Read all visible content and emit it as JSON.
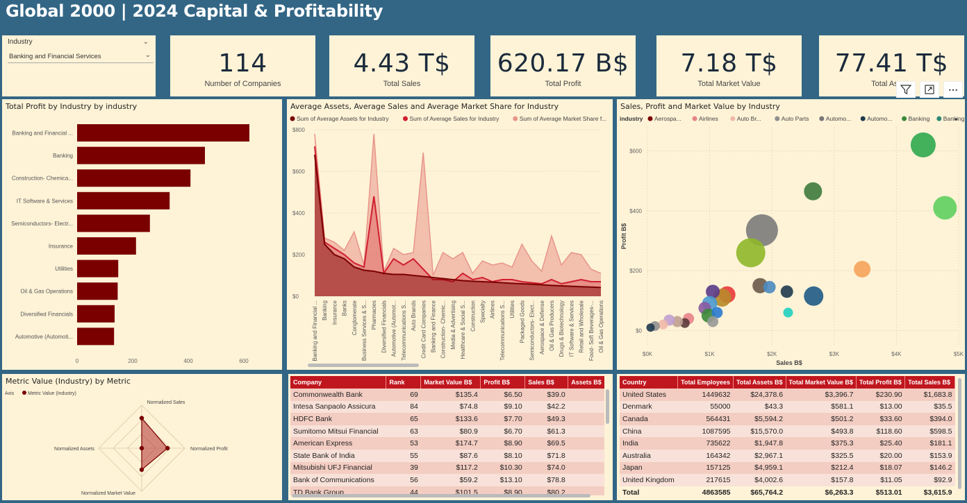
{
  "title": "Global 2000 | 2024 Capital & Profitability",
  "slicer": {
    "label": "Industry",
    "value": "Banking and Financial Services"
  },
  "cards": [
    {
      "value": "114",
      "label": "Number of Companies"
    },
    {
      "value": "4.43 T$",
      "label": "Total Sales"
    },
    {
      "value": "620.17 B$",
      "label": "Total Profit"
    },
    {
      "value": "7.18 T$",
      "label": "Total Market Value"
    },
    {
      "value": "77.41 T$",
      "label": "Total Assets"
    }
  ],
  "colors": {
    "header_bg": "#336685",
    "panel_bg": "#fef3d7",
    "accent_red": "#c0161e",
    "bar": "#7a0000"
  },
  "bar_chart": {
    "title": "Total Profit by Industry by industry",
    "chart_data": {
      "type": "bar",
      "orientation": "horizontal",
      "categories": [
        "Banking and Financial ...",
        "Banking",
        "Construction- Chemica...",
        "IT Software & Services",
        "Semiconductors- Electr...",
        "Insurance",
        "Utilities",
        "Oil & Gas Operations",
        "Diversified Financials",
        "Automotive (Automoti..."
      ],
      "values": [
        620,
        460,
        408,
        333,
        262,
        212,
        148,
        146,
        135,
        133
      ],
      "xticks": [
        "0",
        "200",
        "400",
        "600"
      ],
      "xlim": [
        0,
        680
      ]
    }
  },
  "area_chart": {
    "title": "Average Assets, Average Sales and Average Market Share for Industry",
    "chart_data": {
      "type": "area",
      "series": [
        {
          "name": "Sum of Average Assets for Industry",
          "color": "#7a0000",
          "values": [
            680,
            250,
            200,
            180,
            140,
            125,
            120,
            110,
            105,
            105,
            100,
            95,
            90,
            85,
            80,
            75,
            72,
            70,
            68,
            65,
            62,
            60,
            58,
            55,
            52,
            50,
            48,
            46,
            44,
            42
          ]
        },
        {
          "name": "Sum of Average Sales for Industry",
          "color": "#d01f2e",
          "values": [
            720,
            260,
            230,
            200,
            160,
            140,
            480,
            110,
            180,
            150,
            180,
            130,
            80,
            80,
            70,
            110,
            80,
            90,
            70,
            80,
            80,
            70,
            65,
            60,
            80,
            60,
            70,
            80,
            70,
            70
          ]
        },
        {
          "name": "Sum of Average Market Share f...",
          "color": "#e8958a",
          "values": [
            780,
            280,
            260,
            220,
            310,
            150,
            780,
            120,
            230,
            200,
            210,
            690,
            100,
            210,
            180,
            210,
            110,
            170,
            150,
            160,
            140,
            250,
            170,
            120,
            290,
            150,
            210,
            200,
            130,
            110
          ]
        }
      ],
      "categories": [
        "Banking and Financial ...",
        "Banking",
        "Insurance",
        "Banks",
        "Conglomerate",
        "Business Services & S...",
        "Pharmacies",
        "Diversified Financials",
        "Automotive (Automot...",
        "Telecommunications S...",
        "Auto Brands",
        "Credit Card Companies",
        "Banking and Finance",
        "Construction- Chemic...",
        "Media & Advertising",
        "Healthcare & Social S...",
        "Construction",
        "Specialty",
        "Airlines",
        "Telecommunications S...",
        "Utilities",
        "Packaged Goods",
        "Semiconductors- Elect...",
        "Aerospace & Defense",
        "Oil & Gas Producers",
        "Drugs & Biotechnology",
        "IT Software & Services",
        "Retail and Wholesale",
        "Food- Soft Beverages-...",
        "Oil & Gas Operations"
      ],
      "yticks": [
        "$800",
        "$600",
        "$400",
        "$200",
        "$0"
      ],
      "ylim": [
        0,
        800
      ]
    }
  },
  "scatter_chart": {
    "title": "Sales, Profit and Market Value by Industry",
    "legend_title": "industry",
    "legend": [
      {
        "name": "Aerospa...",
        "color": "#7a0000"
      },
      {
        "name": "Airlines",
        "color": "#e8838a"
      },
      {
        "name": "Auto Br...",
        "color": "#f0b8a8"
      },
      {
        "name": "Auto Parts",
        "color": "#8f8f8f"
      },
      {
        "name": "Automo...",
        "color": "#777777"
      },
      {
        "name": "Automo...",
        "color": "#1f3a4f"
      },
      {
        "name": "Banking",
        "color": "#3a8a3a"
      },
      {
        "name": "Banking ...",
        "color": "#2e8a74"
      }
    ],
    "chart_data": {
      "type": "scatter",
      "xlabel": "Sales B$",
      "ylabel": "Profit B$",
      "xticks": [
        "$0K",
        "$1K",
        "$2K",
        "$3K",
        "$4K",
        "$5K"
      ],
      "yticks": [
        "$600",
        "$400",
        "$200",
        "$0"
      ],
      "xlim": [
        0,
        5000
      ],
      "ylim": [
        -50,
        680
      ],
      "points": [
        {
          "x": 4430,
          "y": 620,
          "r": 18,
          "color": "#2fa84f"
        },
        {
          "x": 4780,
          "y": 410,
          "r": 17,
          "color": "#5fcf5f"
        },
        {
          "x": 2660,
          "y": 465,
          "r": 13,
          "color": "#3d7a3d"
        },
        {
          "x": 1840,
          "y": 335,
          "r": 23,
          "color": "#7b7b7b"
        },
        {
          "x": 1660,
          "y": 260,
          "r": 21,
          "color": "#8fb82a"
        },
        {
          "x": 3450,
          "y": 205,
          "r": 12,
          "color": "#f5a35a"
        },
        {
          "x": 2670,
          "y": 115,
          "r": 14,
          "color": "#1f5a86"
        },
        {
          "x": 1810,
          "y": 150,
          "r": 11,
          "color": "#6b5a4a"
        },
        {
          "x": 1960,
          "y": 145,
          "r": 9,
          "color": "#4a8ac0"
        },
        {
          "x": 2240,
          "y": 130,
          "r": 9,
          "color": "#1f3a4f"
        },
        {
          "x": 2260,
          "y": 60,
          "r": 7,
          "color": "#1fd0c0"
        },
        {
          "x": 1280,
          "y": 120,
          "r": 12,
          "color": "#e83a3a"
        },
        {
          "x": 1200,
          "y": 110,
          "r": 13,
          "color": "#b88a2a"
        },
        {
          "x": 1050,
          "y": 130,
          "r": 10,
          "color": "#5a3a8a"
        },
        {
          "x": 1000,
          "y": 90,
          "r": 11,
          "color": "#4a9ad0"
        },
        {
          "x": 920,
          "y": 75,
          "r": 9,
          "color": "#8a5aa0"
        },
        {
          "x": 980,
          "y": 50,
          "r": 10,
          "color": "#3a8a3a"
        },
        {
          "x": 1120,
          "y": 60,
          "r": 8,
          "color": "#2a7ad0"
        },
        {
          "x": 1050,
          "y": 30,
          "r": 8,
          "color": "#999999"
        },
        {
          "x": 660,
          "y": 40,
          "r": 8,
          "color": "#e8838a"
        },
        {
          "x": 600,
          "y": 25,
          "r": 7,
          "color": "#5a3a3a"
        },
        {
          "x": 480,
          "y": 30,
          "r": 8,
          "color": "#c0a090"
        },
        {
          "x": 350,
          "y": 35,
          "r": 8,
          "color": "#c0a0d0"
        },
        {
          "x": 250,
          "y": 20,
          "r": 7,
          "color": "#f0b8a8"
        },
        {
          "x": 120,
          "y": 15,
          "r": 7,
          "color": "#8f8f8f"
        },
        {
          "x": 50,
          "y": 10,
          "r": 6,
          "color": "#1f3a4f"
        }
      ]
    }
  },
  "radar_chart": {
    "title": "Metric Value (Industry) by Metric",
    "legend_axis": "Axis",
    "legend_series": "Metric Value (Industry)",
    "chart_data": {
      "type": "radar",
      "axes": [
        "Normalized Sales",
        "Normalized Profit",
        "Normalized Market Value",
        "Normalized Assets"
      ],
      "values": [
        0.7,
        0.6,
        0.5,
        0.0
      ]
    }
  },
  "company_table": {
    "columns": [
      "Company",
      "Rank",
      "Market Value B$",
      "Profit B$",
      "Sales B$",
      "Assets B$"
    ],
    "rows": [
      [
        "Commonwealth Bank",
        "69",
        "$135.4",
        "$6.50",
        "$39.0",
        "$87"
      ],
      [
        "Intesa Sanpaolo Assicura",
        "84",
        "$74.8",
        "$9.10",
        "$42.2",
        "$1,0"
      ],
      [
        "HDFC Bank",
        "65",
        "$133.6",
        "$7.70",
        "$49.3",
        "$4"
      ],
      [
        "Sumitomo Mitsui Financial",
        "63",
        "$80.9",
        "$6.70",
        "$61.3",
        "$1,9"
      ],
      [
        "American Express",
        "53",
        "$174.7",
        "$8.90",
        "$69.5",
        "$2"
      ],
      [
        "State Bank of India",
        "55",
        "$87.6",
        "$8.10",
        "$71.8",
        "$8"
      ],
      [
        "Mitsubishi UFJ Financial",
        "39",
        "$117.2",
        "$10.30",
        "$74.0",
        "$2,6"
      ],
      [
        "Bank of Communications",
        "56",
        "$59.2",
        "$13.10",
        "$78.8",
        "$1,9"
      ],
      [
        "TD Bank Group",
        "44",
        "$101.5",
        "$8.90",
        "$80.2",
        "$1,4"
      ]
    ]
  },
  "country_table": {
    "columns": [
      "Country",
      "Total Employees",
      "Total Assets B$",
      "Total Market Value B$",
      "Total Profit B$",
      "Total Sales B$"
    ],
    "rows": [
      [
        "United States",
        "1449632",
        "$24,378.6",
        "$3,396.7",
        "$230.90",
        "$1,683.8"
      ],
      [
        "Denmark",
        "55000",
        "$43.3",
        "$581.1",
        "$13.00",
        "$35.5"
      ],
      [
        "Canada",
        "564431",
        "$5,594.2",
        "$501.2",
        "$33.60",
        "$394.0"
      ],
      [
        "China",
        "1087595",
        "$15,570.0",
        "$493.8",
        "$118.60",
        "$598.5"
      ],
      [
        "India",
        "735622",
        "$1,947.8",
        "$375.3",
        "$25.40",
        "$181.1"
      ],
      [
        "Australia",
        "164342",
        "$2,967.1",
        "$325.5",
        "$20.00",
        "$153.9"
      ],
      [
        "Japan",
        "157125",
        "$4,959.1",
        "$212.4",
        "$18.07",
        "$146.2"
      ],
      [
        "United Kingdom",
        "217615",
        "$4,002.6",
        "$157.8",
        "$11.05",
        "$92.9"
      ]
    ],
    "total": [
      "Total",
      "4863585",
      "$65,764.2",
      "$6,263.3",
      "$513.01",
      "$3,615.9"
    ]
  }
}
